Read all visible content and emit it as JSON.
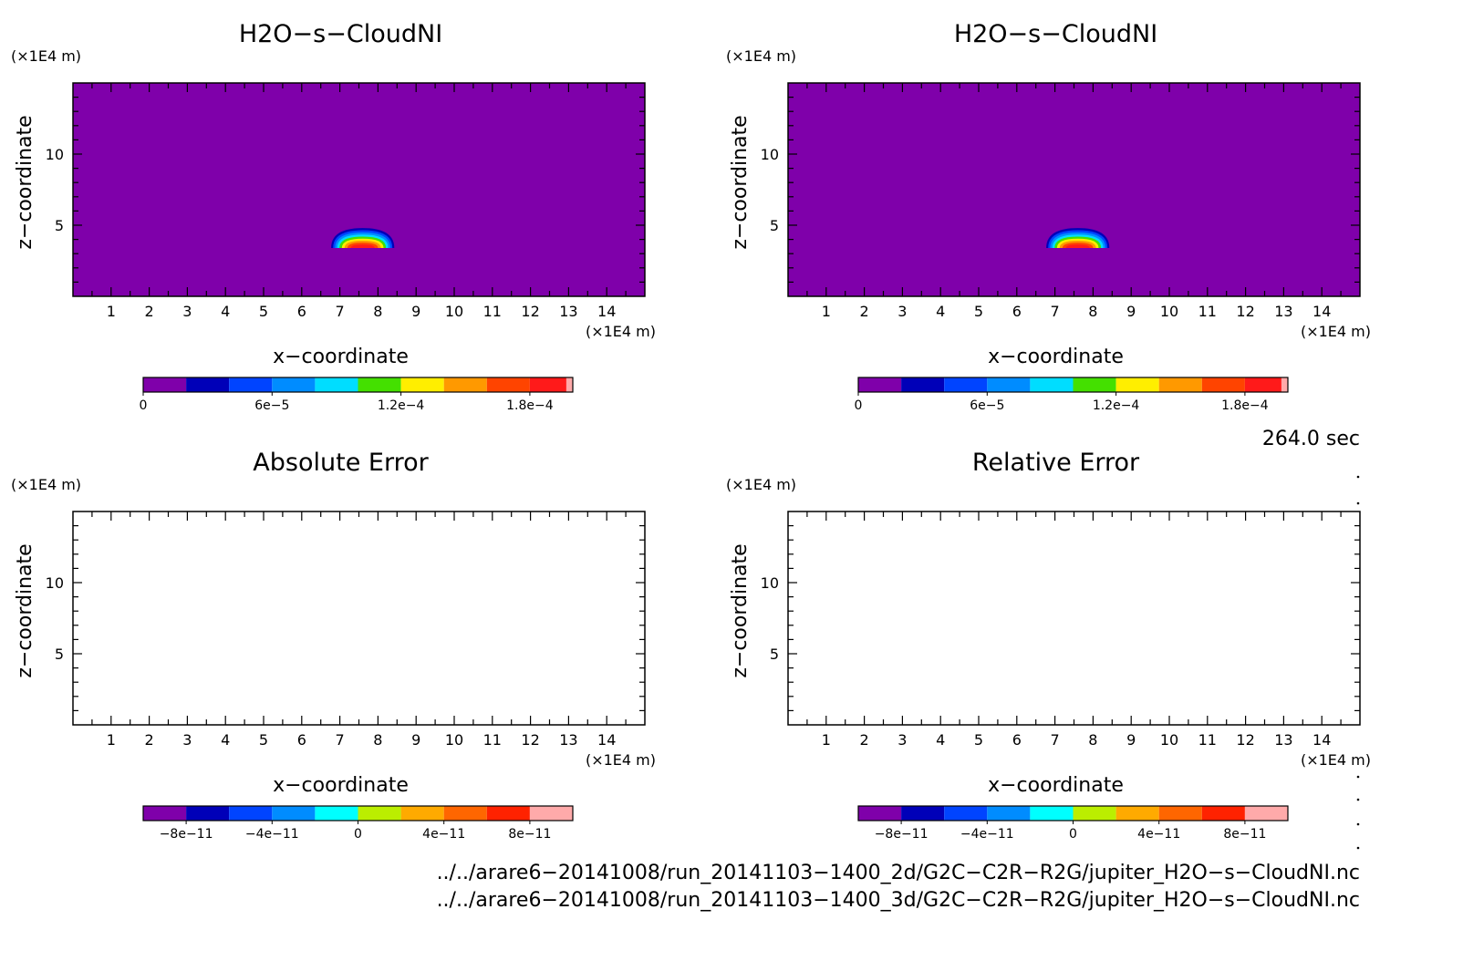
{
  "chart_data": [
    {
      "type": "heatmap",
      "title": "H2O−s−CloudNI",
      "xlabel": "x−coordinate",
      "ylabel": "z−coordinate",
      "x_unit": "(×1E4 m)",
      "y_unit": "(×1E4 m)",
      "xlim": [
        0,
        15
      ],
      "ylim": [
        0,
        15
      ],
      "x_ticks": [
        "1",
        "2",
        "3",
        "4",
        "5",
        "6",
        "7",
        "8",
        "9",
        "10",
        "11",
        "12",
        "13",
        "14"
      ],
      "y_ticks": [
        "5",
        "10"
      ],
      "background_color": "#7f00aa",
      "cloud": {
        "center_x": 7.6,
        "base_z": 3.4,
        "top_z": 4.8,
        "half_width": 0.9,
        "peak_value": 0.00019
      },
      "colorbar": {
        "min": 0,
        "max": 0.0002,
        "colors": [
          "#7f00aa",
          "#0000b8",
          "#0044ff",
          "#008cff",
          "#00ddff",
          "#44e000",
          "#ffee00",
          "#ff9900",
          "#ff4400",
          "#ff1a1a",
          "#ffaaaa"
        ],
        "bounds": [
          0,
          2e-05,
          4e-05,
          6e-05,
          8e-05,
          0.0001,
          0.00012,
          0.00014,
          0.00016,
          0.00018,
          0.000197,
          0.0002
        ],
        "tick_values": [
          0,
          6e-05,
          0.00012,
          0.00018
        ],
        "tick_labels": [
          "0",
          "6e−5",
          "1.2e−4",
          "1.8e−4"
        ]
      }
    },
    {
      "type": "heatmap",
      "title": "H2O−s−CloudNI",
      "xlabel": "x−coordinate",
      "ylabel": "z−coordinate",
      "x_unit": "(×1E4 m)",
      "y_unit": "(×1E4 m)",
      "xlim": [
        0,
        15
      ],
      "ylim": [
        0,
        15
      ],
      "x_ticks": [
        "1",
        "2",
        "3",
        "4",
        "5",
        "6",
        "7",
        "8",
        "9",
        "10",
        "11",
        "12",
        "13",
        "14"
      ],
      "y_ticks": [
        "5",
        "10"
      ],
      "background_color": "#7f00aa",
      "cloud": {
        "center_x": 7.6,
        "base_z": 3.4,
        "top_z": 4.8,
        "half_width": 0.9,
        "peak_value": 0.00019
      },
      "colorbar": {
        "min": 0,
        "max": 0.0002,
        "colors": [
          "#7f00aa",
          "#0000b8",
          "#0044ff",
          "#008cff",
          "#00ddff",
          "#44e000",
          "#ffee00",
          "#ff9900",
          "#ff4400",
          "#ff1a1a",
          "#ffaaaa"
        ],
        "bounds": [
          0,
          2e-05,
          4e-05,
          6e-05,
          8e-05,
          0.0001,
          0.00012,
          0.00014,
          0.00016,
          0.00018,
          0.000197,
          0.0002
        ],
        "tick_values": [
          0,
          6e-05,
          0.00012,
          0.00018
        ],
        "tick_labels": [
          "0",
          "6e−5",
          "1.2e−4",
          "1.8e−4"
        ]
      }
    },
    {
      "type": "heatmap",
      "title": "Absolute Error",
      "xlabel": "x−coordinate",
      "ylabel": "z−coordinate",
      "x_unit": "(×1E4 m)",
      "y_unit": "(×1E4 m)",
      "xlim": [
        0,
        15
      ],
      "ylim": [
        0,
        15
      ],
      "x_ticks": [
        "1",
        "2",
        "3",
        "4",
        "5",
        "6",
        "7",
        "8",
        "9",
        "10",
        "11",
        "12",
        "13",
        "14"
      ],
      "y_ticks": [
        "5",
        "10"
      ],
      "background_color": "#ffffff",
      "cloud": null,
      "colorbar": {
        "min": -1e-10,
        "max": 1e-10,
        "colors": [
          "#7f00aa",
          "#0000b8",
          "#0044ff",
          "#008cff",
          "#00ffff",
          "#bbee00",
          "#ffaa00",
          "#ff6600",
          "#ff2200",
          "#ffaaaa"
        ],
        "bounds": [
          -1e-10,
          -8e-11,
          -6e-11,
          -4e-11,
          -2e-11,
          0,
          2e-11,
          4e-11,
          6e-11,
          8e-11,
          1e-10
        ],
        "tick_values": [
          -8e-11,
          -4e-11,
          0,
          4e-11,
          8e-11
        ],
        "tick_labels": [
          "−8e−11",
          "−4e−11",
          "0",
          "4e−11",
          "8e−11"
        ]
      }
    },
    {
      "type": "heatmap",
      "title": "Relative Error",
      "xlabel": "x−coordinate",
      "ylabel": "z−coordinate",
      "x_unit": "(×1E4 m)",
      "y_unit": "(×1E4 m)",
      "xlim": [
        0,
        15
      ],
      "ylim": [
        0,
        15
      ],
      "x_ticks": [
        "1",
        "2",
        "3",
        "4",
        "5",
        "6",
        "7",
        "8",
        "9",
        "10",
        "11",
        "12",
        "13",
        "14"
      ],
      "y_ticks": [
        "5",
        "10"
      ],
      "background_color": "#ffffff",
      "cloud": null,
      "colorbar": {
        "min": -1e-10,
        "max": 1e-10,
        "colors": [
          "#7f00aa",
          "#0000b8",
          "#0044ff",
          "#008cff",
          "#00ffff",
          "#bbee00",
          "#ffaa00",
          "#ff6600",
          "#ff2200",
          "#ffaaaa"
        ],
        "bounds": [
          -1e-10,
          -8e-11,
          -6e-11,
          -4e-11,
          -2e-11,
          0,
          2e-11,
          4e-11,
          6e-11,
          8e-11,
          1e-10
        ],
        "tick_values": [
          -8e-11,
          -4e-11,
          0,
          4e-11,
          8e-11
        ],
        "tick_labels": [
          "−8e−11",
          "−4e−11",
          "0",
          "4e−11",
          "8e−11"
        ]
      }
    }
  ],
  "time_label": "264.0 sec",
  "file_paths": [
    "../../arare6−20141008/run_20141103−1400_2d/G2C−C2R−R2G/jupiter_H2O−s−CloudNI.nc",
    "../../arare6−20141008/run_20141103−1400_3d/G2C−C2R−R2G/jupiter_H2O−s−CloudNI.nc"
  ]
}
